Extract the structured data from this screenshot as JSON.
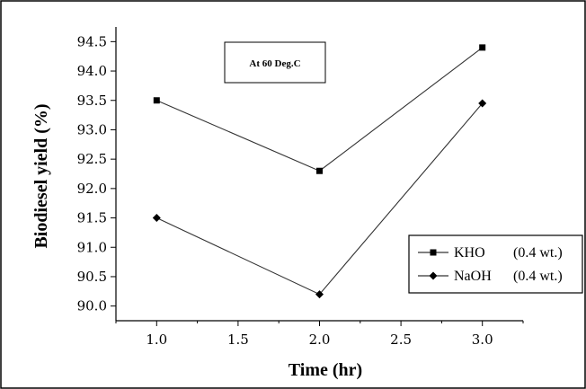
{
  "chart_data": {
    "type": "line",
    "annotation": "At 60 Deg.C",
    "xlabel": "Time (hr)",
    "ylabel": "Biodiesel yield (%)",
    "x": [
      1.0,
      2.0,
      3.0
    ],
    "xlim": [
      0.75,
      3.25
    ],
    "ylim": [
      89.75,
      94.75
    ],
    "xticks": [
      "1.0",
      "1.5",
      "2.0",
      "2.5",
      "3.0"
    ],
    "yticks": [
      "90.0",
      "90.5",
      "91.0",
      "91.5",
      "92.0",
      "92.5",
      "93.0",
      "93.5",
      "94.0",
      "94.5"
    ],
    "legend_position": "right",
    "series": [
      {
        "name": "KHO",
        "detail": "(0.4 wt.)",
        "marker": "square",
        "values": [
          93.5,
          92.3,
          94.4
        ]
      },
      {
        "name": "NaOH",
        "detail": "(0.4 wt.)",
        "marker": "diamond",
        "values": [
          91.5,
          90.2,
          93.45
        ]
      }
    ]
  }
}
